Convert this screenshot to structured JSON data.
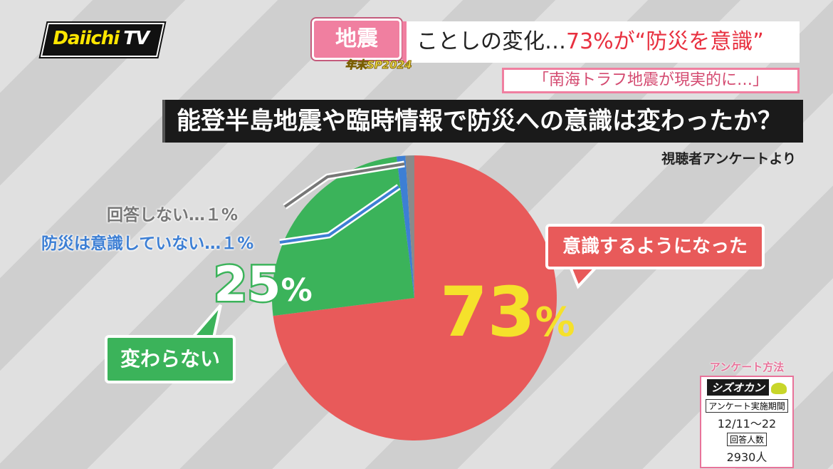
{
  "header": {
    "logo_main": "Daiichi",
    "logo_suffix": "TV",
    "category_tag": "地震",
    "headline_prefix": "ことしの変化…",
    "headline_highlight": "73%が“防災を意識”",
    "special_label": "年末SP2024",
    "subheadline": "「南海トラフ地震が現実的に…」"
  },
  "question": "能登半島地震や臨時情報で防災への意識は変わったか？",
  "source": "視聴者アンケートより",
  "labels": {
    "no_answer": "回答しない…１%",
    "not_conscious": "防災は意識していない…１%",
    "unchanged": "変わらない",
    "became_conscious": "意識するようになった",
    "pct_unchanged": "25",
    "pct_conscious": "73",
    "pct_unit": "%"
  },
  "survey": {
    "title": "アンケート方法",
    "brand": "シズオカン",
    "period_label": "アンケート実施期間",
    "period_value": "12/11～22",
    "count_label": "回答人数",
    "count_value": "2930人"
  },
  "chart_data": {
    "type": "pie",
    "title": "能登半島地震や臨時情報で防災への意識は変わったか？",
    "slices": [
      {
        "label": "意識するようになった",
        "value": 73,
        "color": "#e85a5a"
      },
      {
        "label": "変わらない",
        "value": 25,
        "color": "#3bb35a"
      },
      {
        "label": "防災は意識していない",
        "value": 1,
        "color": "#3d7fd4"
      },
      {
        "label": "回答しない",
        "value": 1,
        "color": "#8a8a8a"
      }
    ]
  }
}
